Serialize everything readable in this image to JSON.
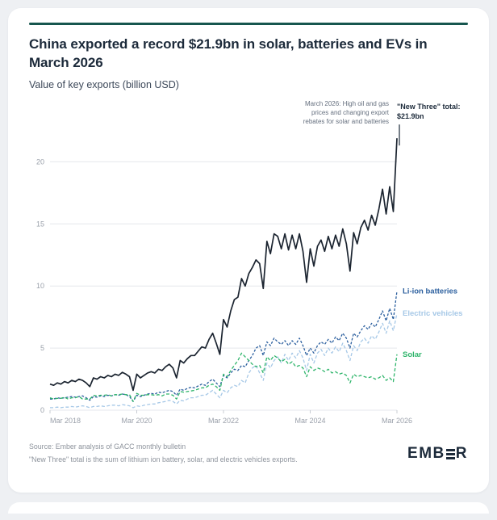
{
  "card": {
    "accent_color": "#16564e",
    "title": "China exported a record $21.9bn in solar, batteries and EVs in March 2026",
    "subtitle": "Value of key exports (billion USD)"
  },
  "chart_data": {
    "type": "line",
    "title": "China exported a record $21.9bn in solar, batteries and EVs in March 2026",
    "unit": "billion USD",
    "x_frequency": "monthly",
    "x_range": [
      "Mar 2018",
      "Mar 2026"
    ],
    "ymax": 22.5,
    "yticks": [
      0,
      5,
      10,
      15,
      20
    ],
    "xticks": [
      {
        "i": 0,
        "label": "Mar 2018"
      },
      {
        "i": 24,
        "label": "Mar 2020"
      },
      {
        "i": 48,
        "label": "Mar 2022"
      },
      {
        "i": 72,
        "label": "Mar 2024"
      },
      {
        "i": 96,
        "label": "Mar 2026"
      }
    ],
    "annotation": {
      "text_lines": [
        "March 2026: High oil and gas",
        "prices and changing export",
        "rebates for solar and batteries"
      ]
    },
    "peak_label": {
      "line1": "\"New Three\" total:",
      "line2": "$21.9bn"
    },
    "series": [
      {
        "id": "total",
        "name": "\"New Three\" total",
        "color": "#1b2430",
        "dash": "",
        "width": 1.7,
        "values": [
          2.1,
          2.0,
          2.2,
          2.1,
          2.3,
          2.2,
          2.4,
          2.3,
          2.5,
          2.4,
          2.2,
          1.9,
          2.6,
          2.5,
          2.7,
          2.6,
          2.8,
          2.7,
          2.9,
          2.8,
          3.05,
          2.9,
          2.7,
          1.6,
          2.9,
          2.6,
          2.8,
          3.0,
          3.1,
          3.0,
          3.3,
          3.2,
          3.5,
          3.7,
          3.4,
          2.6,
          4.0,
          3.8,
          4.15,
          4.4,
          4.4,
          4.75,
          5.1,
          5.0,
          5.7,
          6.2,
          5.4,
          4.5,
          7.3,
          6.7,
          8.0,
          8.9,
          9.1,
          10.6,
          10.0,
          11.0,
          11.5,
          12.1,
          11.8,
          9.8,
          13.6,
          12.6,
          14.2,
          14.0,
          13.0,
          14.2,
          12.9,
          14.1,
          13.0,
          14.2,
          12.8,
          10.3,
          13.0,
          11.6,
          13.2,
          13.7,
          12.8,
          14.0,
          13.0,
          14.1,
          13.2,
          14.6,
          13.4,
          11.2,
          14.3,
          13.4,
          14.7,
          15.3,
          14.5,
          15.7,
          14.9,
          16.2,
          17.8,
          15.8,
          18.0,
          16.0,
          21.9
        ]
      },
      {
        "id": "li_ion",
        "name": "Li-ion batteries",
        "end_label": "Li-ion batteries",
        "color": "#2b5f9e",
        "dash": "3 2",
        "width": 1.3,
        "values": [
          0.9,
          0.9,
          1.0,
          0.95,
          1.0,
          1.05,
          1.1,
          1.05,
          1.1,
          1.15,
          1.0,
          0.8,
          1.1,
          1.05,
          1.15,
          1.1,
          1.2,
          1.15,
          1.25,
          1.2,
          1.3,
          1.25,
          1.1,
          0.7,
          1.2,
          1.1,
          1.2,
          1.3,
          1.35,
          1.3,
          1.45,
          1.4,
          1.5,
          1.6,
          1.5,
          1.2,
          1.7,
          1.6,
          1.75,
          1.85,
          1.8,
          1.95,
          2.1,
          2.0,
          2.3,
          2.5,
          2.2,
          1.9,
          2.8,
          2.6,
          3.0,
          3.3,
          3.2,
          3.6,
          3.5,
          4.0,
          4.4,
          5.0,
          5.2,
          4.4,
          5.5,
          5.2,
          5.8,
          5.5,
          5.3,
          5.6,
          5.2,
          5.6,
          5.3,
          5.8,
          5.2,
          4.4,
          5.0,
          4.6,
          5.2,
          5.5,
          5.3,
          5.7,
          5.4,
          5.9,
          5.6,
          6.2,
          5.8,
          5.0,
          6.2,
          5.9,
          6.4,
          6.8,
          6.5,
          7.0,
          6.7,
          7.3,
          8.0,
          7.2,
          8.2,
          7.3,
          9.6
        ]
      },
      {
        "id": "ev",
        "name": "Electric vehicles",
        "end_label": "Electric vehicles",
        "color": "#a6c8e7",
        "dash": "4 2.5",
        "width": 1.3,
        "values": [
          0.2,
          0.2,
          0.25,
          0.2,
          0.25,
          0.25,
          0.3,
          0.25,
          0.3,
          0.35,
          0.3,
          0.2,
          0.3,
          0.3,
          0.35,
          0.3,
          0.35,
          0.4,
          0.4,
          0.35,
          0.45,
          0.4,
          0.35,
          0.2,
          0.35,
          0.3,
          0.4,
          0.45,
          0.5,
          0.5,
          0.6,
          0.65,
          0.7,
          0.8,
          0.7,
          0.5,
          0.8,
          0.75,
          0.9,
          1.0,
          1.0,
          1.1,
          1.2,
          1.2,
          1.4,
          1.6,
          1.3,
          1.0,
          1.6,
          1.4,
          1.8,
          2.0,
          1.9,
          2.4,
          2.2,
          3.0,
          3.4,
          3.6,
          3.0,
          2.4,
          3.8,
          3.4,
          4.0,
          4.3,
          3.8,
          4.5,
          4.0,
          4.6,
          4.2,
          4.8,
          4.2,
          3.2,
          4.5,
          3.8,
          4.6,
          4.9,
          4.4,
          5.0,
          4.6,
          5.1,
          4.7,
          5.4,
          4.8,
          4.0,
          5.2,
          4.8,
          5.5,
          5.8,
          5.4,
          6.0,
          5.7,
          6.3,
          7.0,
          6.2,
          7.2,
          6.4,
          7.8
        ]
      },
      {
        "id": "solar",
        "name": "Solar",
        "end_label": "Solar",
        "color": "#2fb56b",
        "dash": "4 2.5",
        "width": 1.3,
        "values": [
          1.0,
          0.9,
          0.95,
          0.95,
          1.05,
          0.9,
          1.0,
          1.0,
          1.1,
          0.9,
          0.9,
          0.9,
          1.2,
          1.15,
          1.2,
          1.2,
          1.25,
          1.15,
          1.25,
          1.25,
          1.3,
          1.25,
          1.25,
          0.7,
          1.35,
          1.2,
          1.2,
          1.25,
          1.25,
          1.2,
          1.25,
          1.15,
          1.3,
          1.3,
          1.2,
          0.9,
          1.5,
          1.45,
          1.5,
          1.55,
          1.6,
          1.7,
          1.8,
          1.8,
          2.0,
          2.1,
          1.9,
          1.6,
          2.9,
          2.7,
          3.2,
          3.6,
          4.0,
          4.6,
          4.3,
          4.0,
          3.7,
          3.5,
          3.6,
          3.0,
          4.3,
          4.0,
          4.4,
          4.2,
          3.9,
          4.1,
          3.7,
          3.9,
          3.5,
          3.6,
          3.4,
          2.7,
          3.5,
          3.2,
          3.4,
          3.3,
          3.1,
          3.3,
          3.0,
          3.1,
          2.9,
          3.0,
          2.8,
          2.2,
          2.9,
          2.7,
          2.8,
          2.7,
          2.6,
          2.7,
          2.5,
          2.6,
          2.8,
          2.4,
          2.6,
          2.3,
          4.5
        ]
      }
    ]
  },
  "footer": {
    "source": "Source: Ember analysis of GACC monthly bulletin",
    "note": "\"New Three\" total is the sum of lithium ion battery, solar, and electric vehicles exports.",
    "logo_text": "EMBER",
    "logo_left": "EMB",
    "logo_right": "R"
  }
}
